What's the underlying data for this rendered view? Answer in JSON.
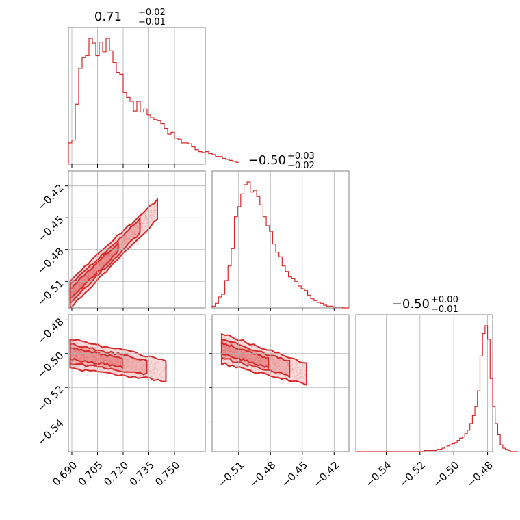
{
  "figure": {
    "type": "corner-plot"
  },
  "colors": {
    "main": "#d62728",
    "fill": "#f3b5b6",
    "grid": "#b0b0b0",
    "frame": "#808080"
  },
  "titles": [
    {
      "main": "0.71",
      "sup": "+0.02",
      "sub": "−0.01"
    },
    {
      "main": "−0.50",
      "sup": "+0.03",
      "sub": "−0.02"
    },
    {
      "main": "−0.50",
      "sup": "+0.00",
      "sub": "−0.01"
    }
  ],
  "chart_data": [
    {
      "type": "histogram",
      "panel": "p1-hist",
      "xlim": [
        0.688,
        0.768
      ],
      "bins_from": 0.688,
      "bin_width": 0.002,
      "counts": [
        22,
        25,
        62,
        99,
        110,
        112,
        130,
        125,
        112,
        126,
        116,
        130,
        117,
        105,
        95,
        93,
        74,
        69,
        65,
        55,
        65,
        54,
        57,
        51,
        48,
        46,
        45,
        42,
        37,
        31,
        33,
        27,
        26,
        22,
        22,
        21,
        18,
        15,
        13,
        12,
        13,
        11,
        10,
        8,
        8,
        6,
        5,
        4,
        3,
        2
      ]
    },
    {
      "type": "histogram",
      "panel": "p2-hist",
      "xlim": [
        -0.535,
        -0.406
      ],
      "bins_from": -0.535,
      "bin_width": 0.003,
      "counts": [
        2,
        5,
        12,
        15,
        30,
        46,
        65,
        100,
        111,
        125,
        135,
        138,
        127,
        129,
        122,
        113,
        100,
        90,
        84,
        70,
        61,
        56,
        46,
        40,
        34,
        32,
        29,
        24,
        21,
        19,
        14,
        10,
        8,
        6,
        5,
        3,
        2,
        2,
        1,
        1,
        1,
        0,
        0
      ]
    },
    {
      "type": "histogram",
      "panel": "p3-hist",
      "xlim": [
        -0.558,
        -0.477
      ],
      "bins_from": -0.558,
      "bin_width": 0.0015,
      "counts": [
        0,
        0,
        0,
        0,
        0,
        0,
        0,
        0,
        0,
        0,
        0,
        0,
        0,
        0,
        0,
        0,
        0,
        0,
        0,
        0,
        0,
        0,
        0,
        0,
        0,
        0,
        0,
        1,
        1,
        1,
        1,
        1,
        2,
        2,
        3,
        4,
        5,
        6,
        7,
        8,
        10,
        12,
        13,
        16,
        19,
        25,
        32,
        40,
        54,
        85,
        105,
        112,
        100,
        65,
        40,
        25,
        15,
        6,
        3,
        2,
        1,
        0,
        0,
        0
      ]
    },
    {
      "type": "scatter-contour",
      "panel": "p1-p2",
      "x_ticks": [
        0.69,
        0.705,
        0.72,
        0.735,
        0.75
      ],
      "y_ticks": [
        -0.42,
        -0.45,
        -0.48,
        -0.51
      ],
      "xlim": [
        0.688,
        0.768
      ],
      "ylim": [
        -0.535,
        -0.406
      ],
      "center_line": {
        "x": [
          0.689,
          0.74
        ],
        "y": [
          -0.522,
          -0.442
        ]
      },
      "spread_y": 0.006
    },
    {
      "type": "scatter-contour",
      "panel": "p1-p3",
      "y_ticks": [
        -0.48,
        -0.5,
        -0.52,
        -0.54
      ],
      "xlim": [
        0.688,
        0.768
      ],
      "ylim": [
        -0.558,
        -0.477
      ],
      "center_line": {
        "x": [
          0.689,
          0.745
        ],
        "y": [
          -0.5,
          -0.51
        ]
      },
      "spread_y": 0.004
    },
    {
      "type": "scatter-contour",
      "panel": "p2-p3",
      "x_ticks": [
        -0.51,
        -0.48,
        -0.45,
        -0.42
      ],
      "xlim": [
        -0.535,
        -0.406
      ],
      "ylim": [
        -0.558,
        -0.477
      ],
      "center_line": {
        "x": [
          -0.526,
          -0.446
        ],
        "y": [
          -0.497,
          -0.512
        ]
      },
      "spread_y": 0.004
    },
    {
      "type": "axis",
      "panel": "p3-xaxis",
      "x_ticks": [
        -0.54,
        -0.52,
        -0.5,
        -0.48
      ]
    }
  ],
  "tick_labels": {
    "p1_x": [
      "0.690",
      "0.705",
      "0.720",
      "0.735",
      "0.750"
    ],
    "p2_x": [
      "−0.51",
      "−0.48",
      "−0.45",
      "−0.42"
    ],
    "p3_x": [
      "−0.54",
      "−0.52",
      "−0.50",
      "−0.48"
    ],
    "p2_y": [
      "−0.42",
      "−0.45",
      "−0.48",
      "−0.51"
    ],
    "p3_y": [
      "−0.48",
      "−0.50",
      "−0.52",
      "−0.54"
    ]
  }
}
